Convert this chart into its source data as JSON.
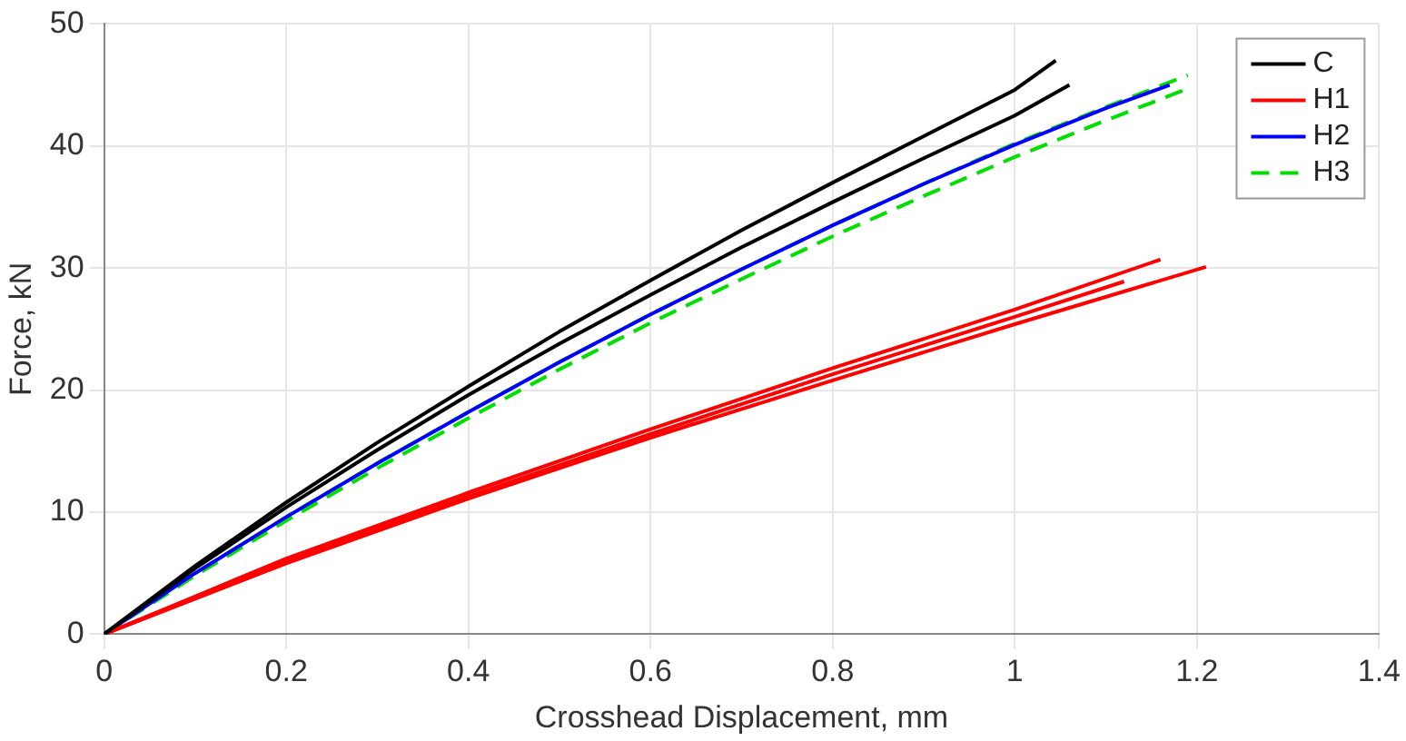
{
  "chart_data": {
    "type": "line",
    "xlabel": "Crosshead Displacement, mm",
    "ylabel": "Force, kN",
    "xlim": [
      0,
      1.4
    ],
    "ylim": [
      0,
      50
    ],
    "xticks": [
      0,
      0.2,
      0.4,
      0.6,
      0.8,
      1,
      1.2,
      1.4
    ],
    "yticks": [
      0,
      10,
      20,
      30,
      40,
      50
    ],
    "grid": true,
    "legend": "top right",
    "marker": "none",
    "series": [
      {
        "name": "C",
        "color": "#000000",
        "x": [
          0,
          0.1,
          0.2,
          0.3,
          0.4,
          0.5,
          0.6,
          0.7,
          0.8,
          0.9,
          1.0,
          1.045
        ],
        "values": [
          0,
          5.6,
          10.8,
          15.7,
          20.3,
          24.8,
          29,
          33.1,
          37,
          40.8,
          44.6,
          47
        ]
      },
      {
        "color": "#000000",
        "x": [
          0,
          0.1,
          0.2,
          0.3,
          0.4,
          0.5,
          0.6,
          0.7,
          0.8,
          0.9,
          1.0,
          1.06
        ],
        "values": [
          0,
          5.4,
          10.4,
          15.1,
          19.6,
          23.8,
          27.8,
          31.7,
          35.4,
          39,
          42.5,
          45
        ]
      },
      {
        "name": "H1",
        "color": "#ff0000",
        "x": [
          0,
          0.1,
          0.2,
          0.4,
          0.6,
          0.8,
          1.0,
          1.16
        ],
        "values": [
          0,
          3.1,
          6.2,
          11.6,
          16.8,
          21.8,
          26.6,
          30.7
        ]
      },
      {
        "color": "#ff0000",
        "x": [
          0,
          0.1,
          0.2,
          0.4,
          0.6,
          0.8,
          1.0,
          1.21
        ],
        "values": [
          0,
          2.9,
          5.8,
          11.1,
          16.1,
          20.8,
          25.4,
          30.1
        ]
      },
      {
        "color": "#ff0000",
        "x": [
          0,
          0.1,
          0.2,
          0.4,
          0.6,
          0.8,
          1.0,
          1.12
        ],
        "values": [
          0,
          3,
          6,
          11.3,
          16.4,
          21.3,
          26,
          28.9
        ]
      },
      {
        "name": "H2",
        "color": "#0000ff",
        "x": [
          0,
          0.1,
          0.2,
          0.3,
          0.4,
          0.5,
          0.6,
          0.7,
          0.8,
          0.9,
          1.0,
          1.1,
          1.17
        ],
        "values": [
          0,
          5,
          9.6,
          14,
          18.2,
          22.3,
          26.2,
          29.9,
          33.5,
          36.9,
          40.1,
          43.1,
          45
        ]
      },
      {
        "name": "H3",
        "color": "#00e000",
        "line_style": "dashed",
        "x": [
          0,
          0.1,
          0.2,
          0.3,
          0.4,
          0.5,
          0.6,
          0.7,
          0.8,
          0.9,
          1.0,
          1.1,
          1.19
        ],
        "values": [
          0,
          5,
          9.6,
          14,
          18.2,
          22.3,
          26.2,
          29.9,
          33.5,
          36.9,
          40.2,
          43.2,
          45.8
        ]
      },
      {
        "color": "#00e000",
        "line_style": "dashed",
        "x": [
          0,
          0.1,
          0.2,
          0.3,
          0.4,
          0.5,
          0.6,
          0.7,
          0.8,
          0.9,
          1.0,
          1.1,
          1.19
        ],
        "values": [
          0,
          4.8,
          9.3,
          13.6,
          17.7,
          21.7,
          25.5,
          29.1,
          32.6,
          35.9,
          39.1,
          42.1,
          44.7
        ]
      }
    ]
  }
}
